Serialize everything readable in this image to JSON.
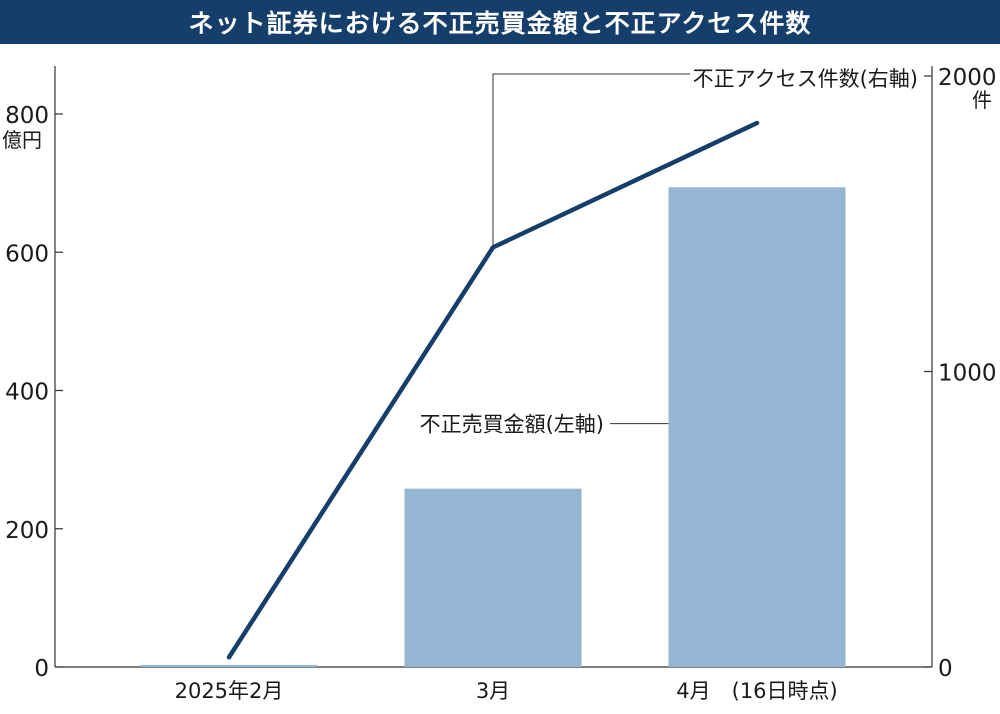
{
  "title": "ネット証券における不正売買金額と不正アクセス件数",
  "chart_data": {
    "type": "bar+line",
    "title": "ネット証券における不正売買金額と不正アクセス件数",
    "categories": [
      "2025年2月",
      "3月",
      "4月　(16日時点)"
    ],
    "series": [
      {
        "name": "不正売買金額(左軸)",
        "type": "bar",
        "axis": "left",
        "unit": "億円",
        "values": [
          3,
          258,
          694
        ],
        "color": "#95b6d3"
      },
      {
        "name": "不正アクセス件数(右軸)",
        "type": "line",
        "axis": "right",
        "unit": "件",
        "values": [
          33,
          1420,
          1841
        ],
        "color": "#153e6b"
      }
    ],
    "left_axis": {
      "ticks": [
        0,
        200,
        400,
        600,
        800
      ],
      "unit": "億円",
      "ylim": [
        0,
        800
      ]
    },
    "right_axis": {
      "ticks": [
        0,
        1000,
        2000
      ],
      "unit": "件",
      "ylim": [
        0,
        2000
      ]
    },
    "grid": false
  }
}
